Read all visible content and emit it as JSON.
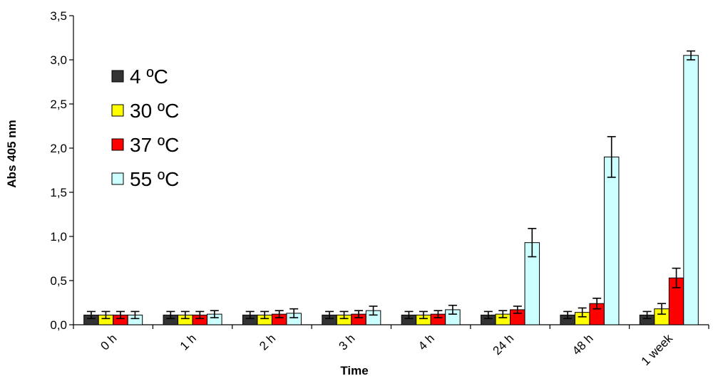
{
  "chart_data": {
    "type": "bar",
    "xlabel": "Time",
    "ylabel": "Abs 405 nm",
    "ylim": [
      0,
      3.5
    ],
    "yticks": [
      "0,0",
      "0,5",
      "1,0",
      "1,5",
      "2,0",
      "2,5",
      "3,0",
      "3,5"
    ],
    "ytick_values": [
      0,
      0.5,
      1.0,
      1.5,
      2.0,
      2.5,
      3.0,
      3.5
    ],
    "categories": [
      "0 h",
      "1 h",
      "2 h",
      "3 h",
      "4 h",
      "24 h",
      "48 h",
      "1 week"
    ],
    "legend_position": "top-left",
    "grid": false,
    "series": [
      {
        "name": "4 ºC",
        "color": "#333333",
        "values": [
          0.11,
          0.11,
          0.11,
          0.11,
          0.11,
          0.11,
          0.11,
          0.11
        ],
        "errors": [
          0.04,
          0.04,
          0.04,
          0.04,
          0.04,
          0.04,
          0.04,
          0.04
        ]
      },
      {
        "name": "30 ºC",
        "color": "#ffff00",
        "values": [
          0.11,
          0.11,
          0.11,
          0.11,
          0.11,
          0.12,
          0.14,
          0.18
        ],
        "errors": [
          0.04,
          0.04,
          0.04,
          0.04,
          0.04,
          0.04,
          0.05,
          0.06
        ]
      },
      {
        "name": "37 ºC",
        "color": "#ff0000",
        "values": [
          0.11,
          0.11,
          0.12,
          0.12,
          0.12,
          0.17,
          0.24,
          0.53
        ],
        "errors": [
          0.04,
          0.04,
          0.04,
          0.04,
          0.04,
          0.04,
          0.06,
          0.11
        ]
      },
      {
        "name": "55 ºC",
        "color": "#ccffff",
        "values": [
          0.11,
          0.12,
          0.13,
          0.16,
          0.17,
          0.93,
          1.9,
          3.05
        ],
        "errors": [
          0.04,
          0.04,
          0.05,
          0.05,
          0.05,
          0.16,
          0.23,
          0.05
        ]
      }
    ]
  }
}
